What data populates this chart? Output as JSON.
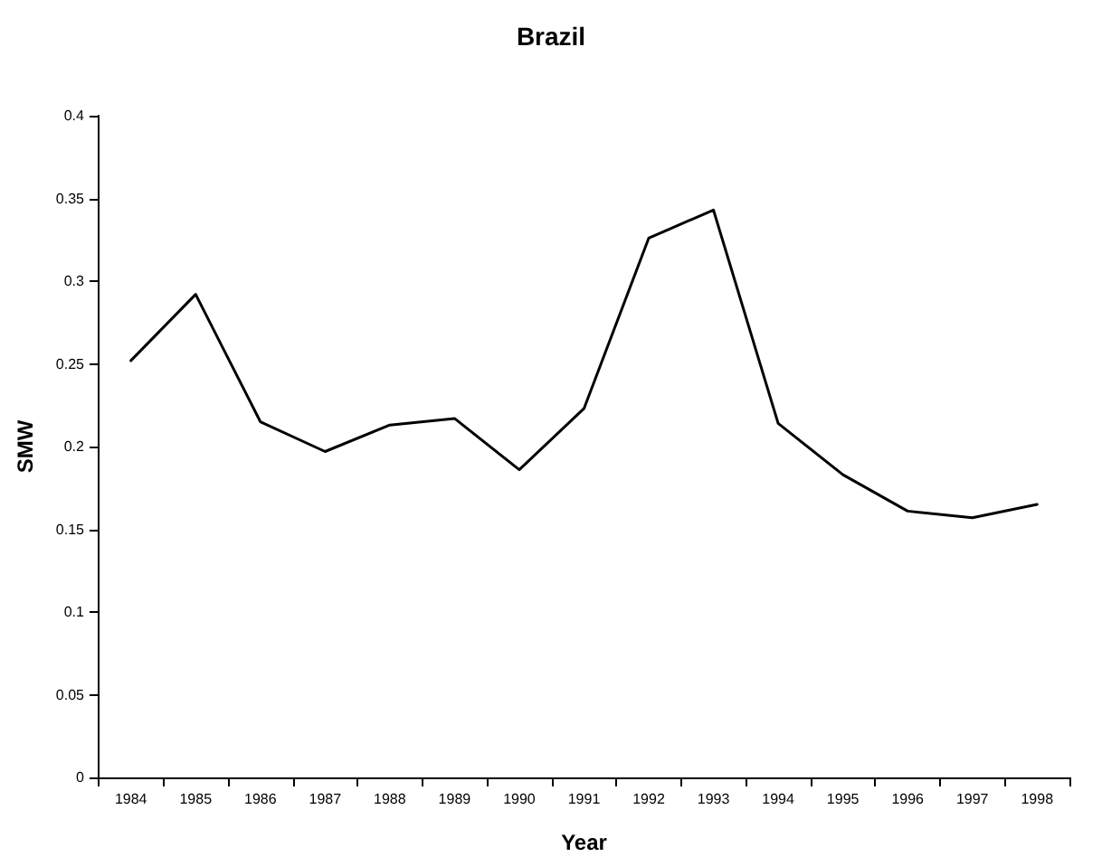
{
  "chart_data": {
    "type": "line",
    "title": "Brazil",
    "xlabel": "Year",
    "ylabel": "SMW",
    "categories": [
      "1984",
      "1985",
      "1986",
      "1987",
      "1988",
      "1989",
      "1990",
      "1991",
      "1992",
      "1993",
      "1994",
      "1995",
      "1996",
      "1997",
      "1998"
    ],
    "series": [
      {
        "color": "#000000",
        "values": [
          0.252,
          0.292,
          0.215,
          0.197,
          0.213,
          0.217,
          0.186,
          0.223,
          0.326,
          0.343,
          0.214,
          0.183,
          0.161,
          0.157,
          0.165
        ]
      }
    ],
    "ylim": [
      0,
      0.4
    ],
    "yticks": [
      0,
      0.05,
      0.1,
      0.15,
      0.2,
      0.25,
      0.3,
      0.35,
      0.4
    ],
    "grid": false,
    "marker": "none",
    "line_style": "solid"
  }
}
